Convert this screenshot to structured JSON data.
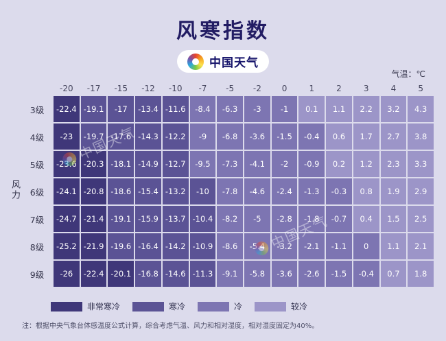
{
  "title": "风寒指数",
  "brand": "中国天气",
  "unit_label": "气温：℃",
  "axis_y_label": "风力",
  "watermark": "中国天气",
  "note": "注：根据中央气象台体感温度公式计算，综合考虑气温、风力和相对湿度，相对湿度固定为40%。",
  "colors": {
    "background": "#dcdbec",
    "title": "#221c63",
    "very_cold": "#3f3779",
    "cold": "#5b5395",
    "chilly": "#7d75b2",
    "cool": "#9c95c8"
  },
  "chart_data": {
    "type": "heatmap",
    "title": "风寒指数",
    "x_axis_label": "气温：℃",
    "y_axis_label": "风力",
    "x_ticks": [
      "-20",
      "-17",
      "-15",
      "-12",
      "-10",
      "-7",
      "-5",
      "-2",
      "0",
      "1",
      "2",
      "3",
      "4",
      "5"
    ],
    "y_ticks": [
      "3级",
      "4级",
      "5级",
      "6级",
      "7级",
      "8级",
      "9级"
    ],
    "values": [
      [
        -22.4,
        -19.1,
        -17,
        -13.4,
        -11.6,
        -8.4,
        -6.3,
        -3,
        -1,
        0.1,
        1.1,
        2.2,
        3.2,
        4.3
      ],
      [
        -23,
        -19.7,
        -17.6,
        -14.3,
        -12.2,
        -9,
        -6.8,
        -3.6,
        -1.5,
        -0.4,
        0.6,
        1.7,
        2.7,
        3.8
      ],
      [
        -23.6,
        -20.3,
        -18.1,
        -14.9,
        -12.7,
        -9.5,
        -7.3,
        -4.1,
        -2,
        -0.9,
        0.2,
        1.2,
        2.3,
        3.3
      ],
      [
        -24.1,
        -20.8,
        -18.6,
        -15.4,
        -13.2,
        -10,
        -7.8,
        -4.6,
        -2.4,
        -1.3,
        -0.3,
        0.8,
        1.9,
        2.9
      ],
      [
        -24.7,
        -21.4,
        -19.1,
        -15.9,
        -13.7,
        -10.4,
        -8.2,
        -5,
        -2.8,
        -1.8,
        -0.7,
        0.4,
        1.5,
        2.5
      ],
      [
        -25.2,
        -21.9,
        -19.6,
        -16.4,
        -14.2,
        -10.9,
        -8.6,
        -5.4,
        -3.2,
        -2.1,
        -1.1,
        0,
        1.1,
        2.1
      ],
      [
        -26,
        -22.4,
        -20.1,
        -16.8,
        -14.6,
        -11.3,
        -9.1,
        -5.8,
        -3.6,
        -2.6,
        -1.5,
        -0.4,
        0.7,
        1.8
      ]
    ],
    "color_thresholds": [
      -20,
      -10,
      0
    ],
    "legend_position": "bottom",
    "legend": [
      {
        "label": "非常寒冷",
        "color": "#3f3779",
        "range": "<= -20"
      },
      {
        "label": "寒冷",
        "color": "#5b5395",
        "range": "-20 ~ -10"
      },
      {
        "label": "冷",
        "color": "#7d75b2",
        "range": "-10 ~ 0"
      },
      {
        "label": "较冷",
        "color": "#9c95c8",
        "range": "> 0"
      }
    ]
  }
}
